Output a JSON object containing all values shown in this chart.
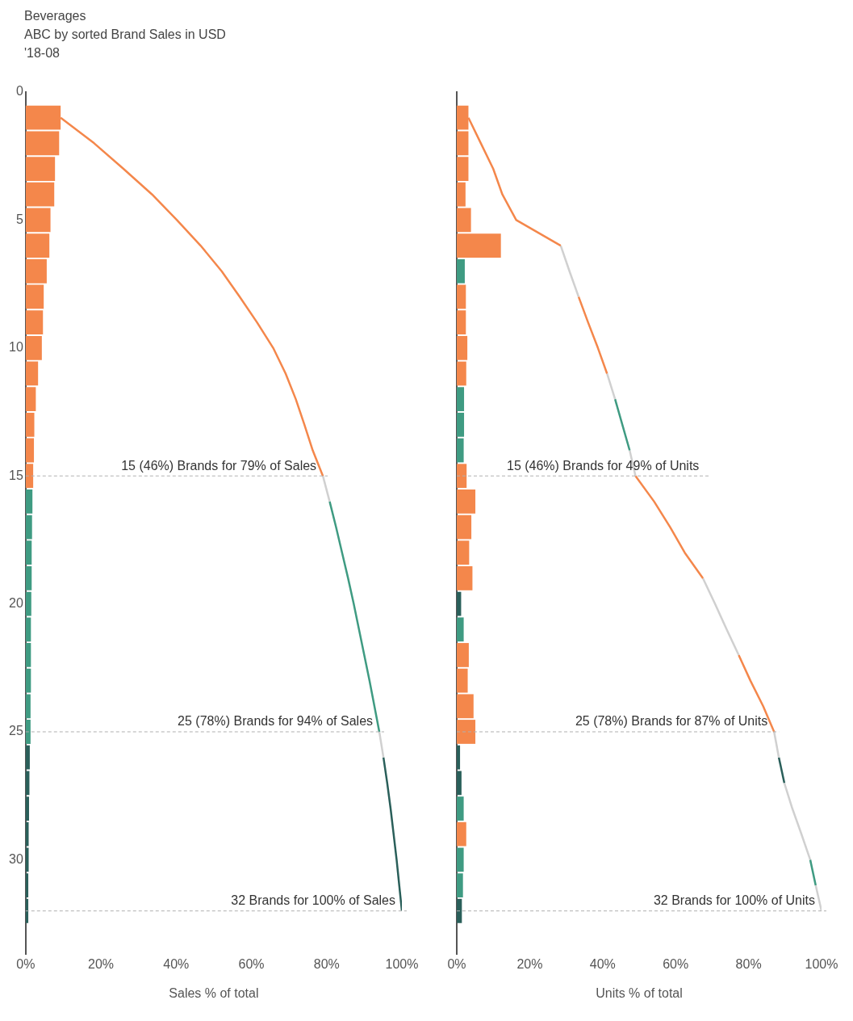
{
  "chart_data": [
    {
      "type": "bar",
      "orientation": "horizontal",
      "title": "Beverages",
      "subtitle": "ABC by sorted Brand Sales in USD",
      "annotations": [
        "'18-08"
      ],
      "xlabel": "Sales % of total",
      "x": [
        1,
        2,
        3,
        4,
        5,
        6,
        7,
        8,
        9,
        10,
        11,
        12,
        13,
        14,
        15,
        16,
        17,
        18,
        19,
        20,
        21,
        22,
        23,
        24,
        25,
        26,
        27,
        28,
        29,
        30,
        31,
        32
      ],
      "xlim": [
        0,
        100
      ],
      "xticks": [
        {
          "value": 0,
          "label": "0%"
        },
        {
          "value": 20,
          "label": "20%"
        },
        {
          "value": 40,
          "label": "40%"
        },
        {
          "value": 60,
          "label": "60%"
        },
        {
          "value": 80,
          "label": "80%"
        },
        {
          "value": 100,
          "label": "100%"
        }
      ],
      "ylim": [
        33.7,
        0
      ],
      "yticks": [
        0,
        5,
        10,
        15,
        20,
        25,
        30
      ],
      "series": [
        {
          "values": [
            9.3,
            8.9,
            7.8,
            7.6,
            6.6,
            6.3,
            5.6,
            4.8,
            4.6,
            4.3,
            3.3,
            2.7,
            2.3,
            2.2,
            2.0,
            1.8,
            1.7,
            1.6,
            1.6,
            1.5,
            1.4,
            1.4,
            1.4,
            1.3,
            1.3,
            1.1,
            1.0,
            0.9,
            0.8,
            0.8,
            0.7,
            0.7
          ],
          "colors": [
            "#f4874b",
            "#f4874b",
            "#f4874b",
            "#f4874b",
            "#f4874b",
            "#f4874b",
            "#f4874b",
            "#f4874b",
            "#f4874b",
            "#f4874b",
            "#f4874b",
            "#f4874b",
            "#f4874b",
            "#f4874b",
            "#f4874b",
            "#3f9b82",
            "#3f9b82",
            "#3f9b82",
            "#3f9b82",
            "#3f9b82",
            "#3f9b82",
            "#3f9b82",
            "#3f9b82",
            "#3f9b82",
            "#3f9b82",
            "#2a5f5a",
            "#2a5f5a",
            "#2a5f5a",
            "#2a5f5a",
            "#2a5f5a",
            "#2a5f5a",
            "#2a5f5a"
          ]
        },
        {
          "type": "line",
          "color": "#f4874b",
          "x": [
            1,
            2,
            3,
            4,
            5,
            6,
            7,
            8,
            9,
            10,
            11,
            12,
            13,
            14,
            15
          ],
          "values": [
            9.3,
            18.2,
            26.0,
            33.6,
            40.2,
            46.5,
            52.1,
            56.9,
            61.5,
            65.8,
            69.1,
            71.8,
            74.1,
            76.3,
            79.0
          ]
        },
        {
          "type": "line",
          "color": "#d0d0d0",
          "x": [
            15,
            16
          ],
          "values": [
            79.0,
            80.8
          ]
        },
        {
          "type": "line",
          "color": "#3f9b82",
          "x": [
            16,
            17,
            18,
            19,
            20,
            21,
            22,
            23,
            24,
            25
          ],
          "values": [
            80.8,
            82.5,
            84.1,
            85.7,
            87.2,
            88.6,
            90.0,
            91.4,
            92.7,
            94.0
          ]
        },
        {
          "type": "line",
          "color": "#d0d0d0",
          "x": [
            25,
            26
          ],
          "values": [
            94.0,
            95.1
          ]
        },
        {
          "type": "line",
          "color": "#2a5f5a",
          "x": [
            26,
            27,
            28,
            29,
            30,
            31,
            32
          ],
          "values": [
            95.1,
            96.1,
            97.0,
            97.8,
            98.6,
            99.3,
            100.0
          ]
        }
      ],
      "ref_lines": [
        {
          "axis": "y",
          "value": 15,
          "label": "15 (46%) Brands for 79% of Sales"
        },
        {
          "axis": "y",
          "value": 25,
          "label": "25 (78%) Brands for 94% of Sales"
        },
        {
          "axis": "y",
          "value": 32,
          "label": "32 Brands for 100% of Sales"
        }
      ]
    },
    {
      "type": "bar",
      "orientation": "horizontal",
      "xlabel": "Units % of total",
      "tick_labels": "x",
      "x": [
        1,
        2,
        3,
        4,
        5,
        6,
        7,
        8,
        9,
        10,
        11,
        12,
        13,
        14,
        15,
        16,
        17,
        18,
        19,
        20,
        21,
        22,
        23,
        24,
        25,
        26,
        27,
        28,
        29,
        30,
        31,
        32
      ],
      "xlim": [
        0,
        100
      ],
      "xticks": [
        {
          "value": 0,
          "label": "0%"
        },
        {
          "value": 20,
          "label": "20%"
        },
        {
          "value": 40,
          "label": "40%"
        },
        {
          "value": 60,
          "label": "60%"
        },
        {
          "value": 80,
          "label": "80%"
        },
        {
          "value": 100,
          "label": "100%"
        }
      ],
      "ylim": [
        33.7,
        0
      ],
      "series": [
        {
          "values": [
            3.2,
            3.2,
            3.2,
            2.4,
            3.9,
            12.1,
            2.2,
            2.5,
            2.5,
            2.9,
            2.6,
            2.0,
            2.0,
            1.9,
            2.7,
            5.1,
            4.0,
            3.4,
            4.3,
            1.2,
            1.9,
            3.3,
            3.0,
            4.6,
            5.1,
            0.9,
            1.3,
            1.9,
            2.6,
            1.9,
            1.7,
            1.4
          ],
          "colors": [
            "#f4874b",
            "#f4874b",
            "#f4874b",
            "#f4874b",
            "#f4874b",
            "#f4874b",
            "#3f9b82",
            "#f4874b",
            "#f4874b",
            "#f4874b",
            "#f4874b",
            "#3f9b82",
            "#3f9b82",
            "#3f9b82",
            "#f4874b",
            "#f4874b",
            "#f4874b",
            "#f4874b",
            "#f4874b",
            "#2a5f5a",
            "#3f9b82",
            "#f4874b",
            "#f4874b",
            "#f4874b",
            "#f4874b",
            "#2a5f5a",
            "#2a5f5a",
            "#3f9b82",
            "#f4874b",
            "#3f9b82",
            "#3f9b82",
            "#2a5f5a"
          ]
        },
        {
          "type": "line",
          "color": "#f4874b",
          "x": [
            1,
            2,
            3,
            4,
            5,
            6
          ],
          "values": [
            3.2,
            6.6,
            10.0,
            12.5,
            16.3,
            28.5
          ]
        },
        {
          "type": "line",
          "color": "#d0d0d0",
          "x": [
            6,
            7,
            8
          ],
          "values": [
            28.5,
            30.9,
            33.4
          ]
        },
        {
          "type": "line",
          "color": "#f4874b",
          "x": [
            8,
            9,
            10,
            11
          ],
          "values": [
            33.4,
            36.0,
            38.7,
            41.2
          ]
        },
        {
          "type": "line",
          "color": "#d0d0d0",
          "x": [
            11,
            12
          ],
          "values": [
            41.2,
            43.4
          ]
        },
        {
          "type": "line",
          "color": "#3f9b82",
          "x": [
            12,
            13,
            14
          ],
          "values": [
            43.4,
            45.4,
            47.4
          ]
        },
        {
          "type": "line",
          "color": "#d0d0d0",
          "x": [
            14,
            15
          ],
          "values": [
            47.4,
            49.0
          ]
        },
        {
          "type": "line",
          "color": "#f4874b",
          "x": [
            15,
            16,
            17,
            18,
            19
          ],
          "values": [
            49.0,
            54.1,
            58.5,
            62.5,
            67.5
          ]
        },
        {
          "type": "line",
          "color": "#d0d0d0",
          "x": [
            19,
            20,
            21,
            22
          ],
          "values": [
            67.5,
            70.8,
            74.0,
            77.3
          ]
        },
        {
          "type": "line",
          "color": "#f4874b",
          "x": [
            22,
            23,
            24,
            25
          ],
          "values": [
            77.3,
            80.5,
            84.0,
            87.0
          ]
        },
        {
          "type": "line",
          "color": "#d0d0d0",
          "x": [
            25,
            26
          ],
          "values": [
            87.0,
            88.3
          ]
        },
        {
          "type": "line",
          "color": "#2a5f5a",
          "x": [
            26,
            27
          ],
          "values": [
            88.3,
            89.8
          ]
        },
        {
          "type": "line",
          "color": "#d0d0d0",
          "x": [
            27,
            28,
            29,
            30
          ],
          "values": [
            89.8,
            92.0,
            94.5,
            96.9
          ]
        },
        {
          "type": "line",
          "color": "#3f9b82",
          "x": [
            30,
            31
          ],
          "values": [
            96.9,
            98.4
          ]
        },
        {
          "type": "line",
          "color": "#d0d0d0",
          "x": [
            31,
            32
          ],
          "values": [
            98.4,
            100.0
          ]
        }
      ],
      "ref_lines": [
        {
          "axis": "y",
          "value": 15,
          "label": "15 (46%) Brands for 49% of Units"
        },
        {
          "axis": "y",
          "value": 25,
          "label": "25 (78%) Brands for 87% of Units"
        },
        {
          "axis": "y",
          "value": 32,
          "label": "32 Brands for 100% of Units"
        }
      ]
    }
  ]
}
